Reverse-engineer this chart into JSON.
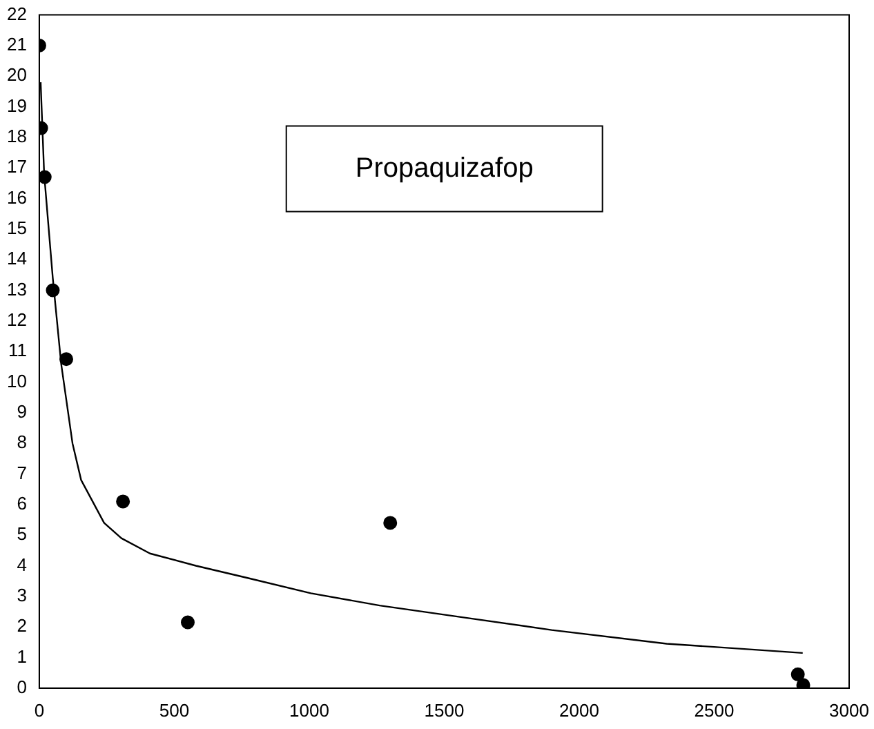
{
  "chart_data": {
    "type": "scatter",
    "xlim": [
      0,
      3000
    ],
    "xticks": [
      0,
      500,
      1000,
      1500,
      2000,
      2500,
      3000
    ],
    "ylim": [
      0,
      22
    ],
    "yticks": [
      0,
      1,
      2,
      3,
      4,
      5,
      6,
      7,
      8,
      9,
      10,
      11,
      12,
      13,
      14,
      15,
      16,
      17,
      18,
      19,
      20,
      21,
      22
    ],
    "grid": false,
    "legend": false,
    "annotations": [
      "Propaquizafop"
    ],
    "series": [
      {
        "color": "#000000",
        "marker": "circle",
        "x": [
          0,
          7,
          20,
          50,
          100,
          310,
          550,
          1300,
          2810,
          2820,
          2830
        ],
        "values": [
          21,
          18.3,
          16.7,
          13,
          10.75,
          6.1,
          2.15,
          5.4,
          0.45,
          null,
          0.1
        ]
      },
      {
        "type": "line",
        "color": "#000000",
        "marker": "none",
        "x": [
          5,
          18,
          50,
          81,
          123,
          155,
          240,
          304,
          410,
          580,
          772,
          1006,
          1261,
          1580,
          1898,
          2324,
          2828
        ],
        "values": [
          19.8,
          16.8,
          13.4,
          10.6,
          8.0,
          6.8,
          5.4,
          4.9,
          4.4,
          4.0,
          3.6,
          3.1,
          2.7,
          2.3,
          1.9,
          1.45,
          1.15
        ]
      }
    ]
  }
}
